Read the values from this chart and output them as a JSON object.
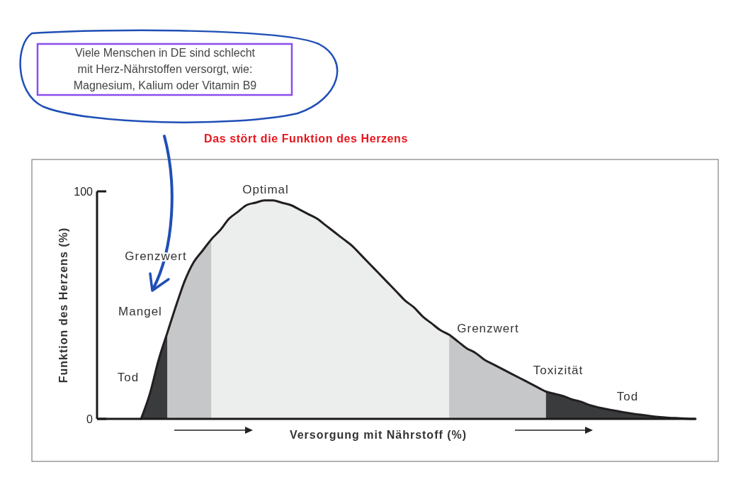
{
  "chart_data": {
    "type": "area",
    "xlabel": "Versorgung mit Nährstoff (%)",
    "ylabel": "Funktion des Herzens (%)",
    "categories": [
      null,
      null,
      null,
      null,
      null,
      null,
      null,
      null,
      null,
      null,
      null,
      null,
      null,
      null,
      null,
      null,
      null,
      null,
      null,
      null,
      null,
      null,
      null,
      null,
      null,
      null,
      null,
      null,
      null,
      null,
      null,
      null,
      null,
      null,
      null,
      null,
      null,
      null,
      null,
      null,
      null,
      null,
      null,
      null,
      null,
      null,
      null,
      null,
      null,
      null,
      null,
      null,
      null,
      null,
      null,
      null,
      null,
      null,
      null,
      null,
      null,
      null,
      null,
      null,
      null,
      null,
      null,
      null,
      null
    ],
    "series": [
      {
        "color": "#3a3b3d",
        "values": [
          null,
          null,
          null,
          null,
          null,
          0,
          11,
          26,
          38,
          null,
          null,
          null,
          null,
          null,
          null,
          null,
          null,
          null,
          null,
          null,
          null,
          null,
          null,
          null,
          null,
          null,
          null,
          null,
          null,
          null,
          null,
          null,
          null,
          null,
          null,
          null,
          null,
          null,
          null,
          null,
          null,
          null,
          null,
          null,
          null,
          null,
          null,
          null,
          null,
          null,
          null,
          null,
          null,
          null,
          null,
          null,
          null,
          null,
          null,
          null,
          null,
          null,
          null,
          null,
          null,
          null,
          null,
          null,
          null
        ]
      },
      {
        "color": "#c6c7c9",
        "values": [
          null,
          null,
          null,
          null,
          null,
          null,
          null,
          null,
          38,
          50,
          61,
          69,
          74,
          79,
          null,
          null,
          null,
          null,
          null,
          null,
          null,
          null,
          null,
          null,
          null,
          null,
          null,
          null,
          null,
          null,
          null,
          null,
          null,
          null,
          null,
          null,
          null,
          null,
          null,
          null,
          null,
          null,
          null,
          null,
          null,
          null,
          null,
          null,
          null,
          null,
          null,
          null,
          null,
          null,
          null,
          null,
          null,
          null,
          null,
          null,
          null,
          null,
          null,
          null,
          null,
          null,
          null,
          null,
          null
        ]
      },
      {
        "color": "#eceeed",
        "values": [
          null,
          null,
          null,
          null,
          null,
          null,
          null,
          null,
          null,
          null,
          null,
          null,
          null,
          79,
          83,
          88,
          91,
          94,
          95,
          96,
          96,
          95,
          94,
          92,
          90,
          88,
          85,
          82,
          79,
          76,
          72,
          68,
          64,
          60,
          56,
          52,
          49,
          45,
          42,
          39,
          37,
          null,
          null,
          null,
          null,
          null,
          null,
          null,
          null,
          null,
          null,
          null,
          null,
          null,
          null,
          null,
          null,
          null,
          null,
          null,
          null,
          null,
          null,
          null,
          null,
          null,
          null,
          null,
          null
        ]
      },
      {
        "color": "#c6c7c9",
        "values": [
          null,
          null,
          null,
          null,
          null,
          null,
          null,
          null,
          null,
          null,
          null,
          null,
          null,
          null,
          null,
          null,
          null,
          null,
          null,
          null,
          null,
          null,
          null,
          null,
          null,
          null,
          null,
          null,
          null,
          null,
          null,
          null,
          null,
          null,
          null,
          null,
          null,
          null,
          null,
          null,
          37,
          34,
          31,
          29,
          26,
          24,
          22,
          20,
          18,
          16,
          14,
          12,
          null,
          null,
          null,
          null,
          null,
          null,
          null,
          null,
          null,
          null,
          null,
          null,
          null,
          null,
          null,
          null,
          null
        ]
      },
      {
        "color": "#3a3b3d",
        "values": [
          null,
          null,
          null,
          null,
          null,
          null,
          null,
          null,
          null,
          null,
          null,
          null,
          null,
          null,
          null,
          null,
          null,
          null,
          null,
          null,
          null,
          null,
          null,
          null,
          null,
          null,
          null,
          null,
          null,
          null,
          null,
          null,
          null,
          null,
          null,
          null,
          null,
          null,
          null,
          null,
          null,
          null,
          null,
          null,
          null,
          null,
          null,
          null,
          null,
          null,
          null,
          12,
          11,
          10,
          8.5,
          7.5,
          6,
          5,
          4.2,
          3.5,
          2.8,
          2.2,
          1.7,
          1.2,
          0.8,
          0.5,
          0.3,
          0.1,
          0
        ]
      },
      {
        "type": "line",
        "color": "#231f20",
        "values": [
          null,
          null,
          null,
          null,
          null,
          0,
          11,
          26,
          38,
          50,
          61,
          69,
          74,
          79,
          83,
          88,
          91,
          94,
          95,
          96,
          96,
          95,
          94,
          92,
          90,
          88,
          85,
          82,
          79,
          76,
          72,
          68,
          64,
          60,
          56,
          52,
          49,
          45,
          42,
          39,
          37,
          34,
          31,
          29,
          26,
          24,
          22,
          20,
          18,
          16,
          14,
          12,
          11,
          10,
          8.5,
          7.5,
          6,
          5,
          4.2,
          3.5,
          2.8,
          2.2,
          1.7,
          1.2,
          0.8,
          0.5,
          0.3,
          0.1,
          0
        ]
      }
    ],
    "ylim": [
      0,
      100
    ],
    "yticks": [
      0,
      100
    ],
    "tick_labels": "y",
    "annotations": [
      "Viele Menschen in DE sind schlecht\nmit Herz-Nährstoffen versorgt, wie:\nMagnesium, Kalium oder Vitamin B9",
      "Das stört die Funktion des Herzens",
      "Tod",
      "Mangel",
      "Grenzwert",
      "Optimal",
      "Grenzwert",
      "Toxizität",
      "Tod"
    ]
  }
}
